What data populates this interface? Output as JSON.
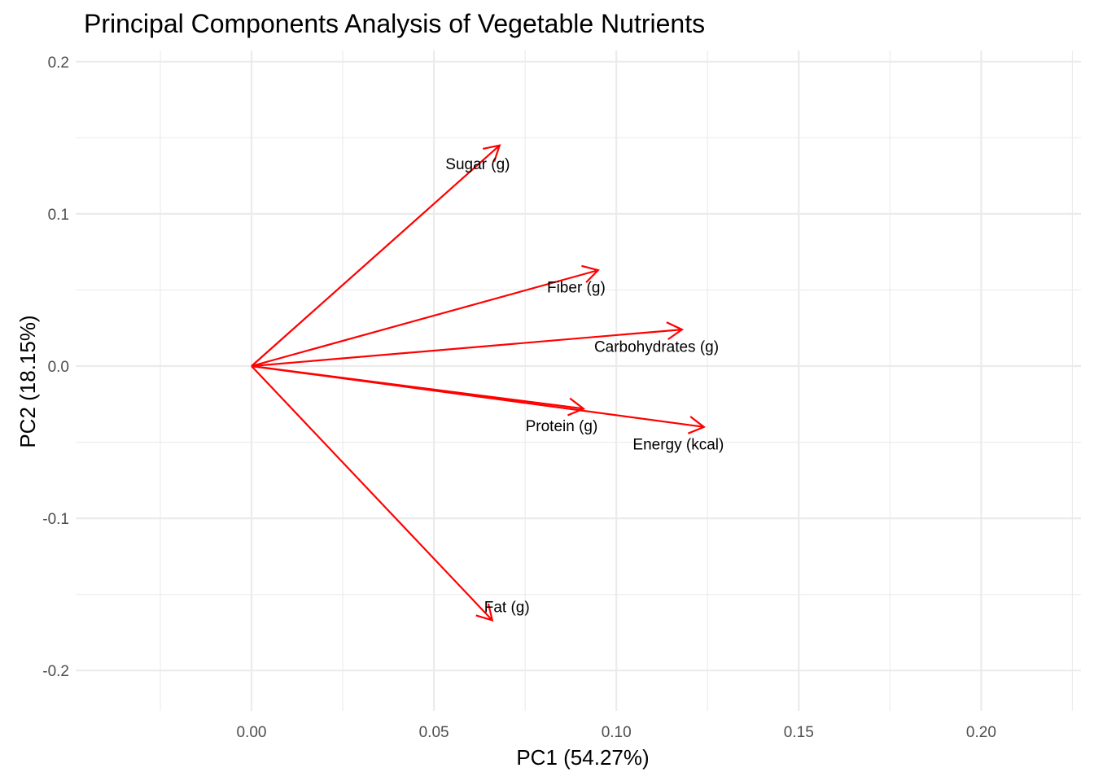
{
  "chart_data": {
    "type": "biplot-vectors",
    "title": "Principal Components Analysis of Vegetable Nutrients",
    "xlabel": "PC1 (54.27%)",
    "ylabel": "PC2 (18.15%)",
    "xlim": [
      -0.05,
      0.225
    ],
    "ylim": [
      -0.228,
      0.206
    ],
    "x_ticks": [
      0.0,
      0.05,
      0.1,
      0.15,
      0.2
    ],
    "x_tick_labels": [
      "0.00",
      "0.05",
      "0.10",
      "0.15",
      "0.20"
    ],
    "y_ticks": [
      -0.2,
      -0.1,
      0.0,
      0.1,
      0.2
    ],
    "y_tick_labels": [
      "-0.2",
      "-0.1",
      "0.0",
      "0.1",
      "0.2"
    ],
    "grid": true,
    "origin": [
      0,
      0
    ],
    "vectors": [
      {
        "label": "Sugar (g)",
        "x": 0.068,
        "y": 0.145,
        "label_x": 0.062,
        "label_y": 0.133
      },
      {
        "label": "Fiber (g)",
        "x": 0.095,
        "y": 0.063,
        "label_x": 0.089,
        "label_y": 0.052
      },
      {
        "label": "Carbohydrates (g)",
        "x": 0.118,
        "y": 0.024,
        "label_x": 0.111,
        "label_y": 0.013
      },
      {
        "label": "Protein (g)",
        "x": 0.091,
        "y": -0.028,
        "label_x": 0.085,
        "label_y": -0.039
      },
      {
        "label": "Energy (kcal)",
        "x": 0.124,
        "y": -0.04,
        "label_x": 0.117,
        "label_y": -0.051
      },
      {
        "label": "Fat (g)",
        "x": 0.066,
        "y": -0.167,
        "label_x": 0.07,
        "label_y": -0.158
      }
    ],
    "vector_color": "#ff0000"
  }
}
